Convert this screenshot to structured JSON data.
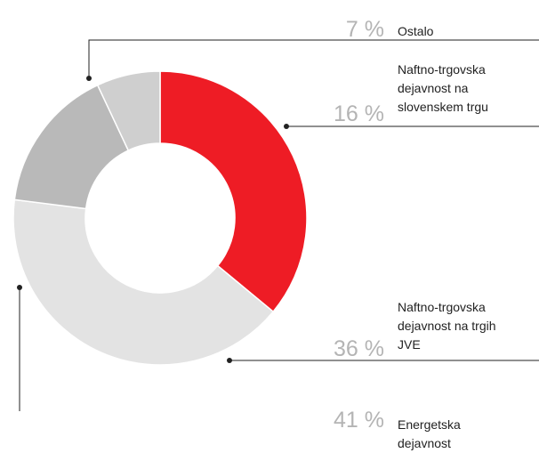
{
  "chart_data": {
    "type": "pie",
    "donut": true,
    "categories": [
      "Ostalo",
      "Naftno-trgovska dejavnost na slovenskem trgu",
      "Naftno-trgovska dejavnost na trgih JVE",
      "Energetska dejavnost"
    ],
    "values": [
      7,
      16,
      36,
      41
    ],
    "value_labels": [
      "7 %",
      "16 %",
      "36 %",
      "41 %"
    ],
    "colors": [
      "#cfcfcf",
      "#b9b9b9",
      "#ee1c25",
      "#e3e3e3"
    ]
  }
}
